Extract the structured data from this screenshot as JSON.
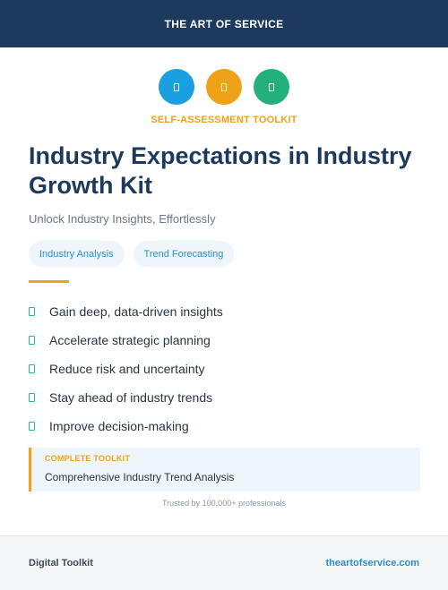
{
  "header": {
    "brand": "THE ART OF SERVICE",
    "color": "#1d3a5c"
  },
  "icons": [
    {
      "name": "blue-doc-icon",
      "color": "#1a9fe0"
    },
    {
      "name": "orange-doc-icon",
      "color": "#f0a11a"
    },
    {
      "name": "green-doc-icon",
      "color": "#23b07d"
    }
  ],
  "hero": {
    "kicker": "SELF-ASSESSMENT TOOLKIT",
    "title": "Industry Expectations in Industry Growth Kit",
    "subtitle": "Unlock Industry Insights, Effortlessly"
  },
  "tags": [
    "Industry Analysis",
    "Trend Forecasting"
  ],
  "benefits": [
    "Gain deep, data-driven insights",
    "Accelerate strategic planning",
    "Reduce risk and uncertainty",
    "Stay ahead of industry trends",
    "Improve decision-making"
  ],
  "callout": {
    "label": "COMPLETE TOOLKIT",
    "value": "Comprehensive Industry Trend Analysis"
  },
  "trusted": "Trusted by 100,000+ professionals",
  "footer": {
    "left": "Digital Toolkit",
    "right": "theartofservice.com"
  },
  "accent_colors": {
    "orange": "#f0a11a",
    "blue": "#2a8fd0",
    "green": "#2db58a"
  }
}
